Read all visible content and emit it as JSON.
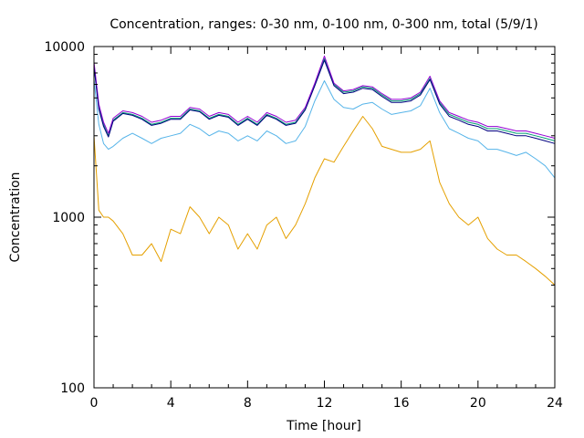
{
  "chart_data": {
    "type": "line",
    "title": "Concentration, ranges: 0-30 nm, 0-100 nm, 0-300 nm, total (5/9/1)",
    "xlabel": "Time [hour]",
    "ylabel": "Concentration",
    "xlim": [
      0,
      24
    ],
    "ylim": [
      100,
      10000
    ],
    "yscale": "log",
    "grid": false,
    "legend": "none",
    "x_ticks": [
      "0",
      "4",
      "8",
      "12",
      "16",
      "20",
      "24"
    ],
    "y_ticks": [
      "100",
      "1000",
      "10000"
    ],
    "x_tick_values": [
      0,
      4,
      8,
      12,
      16,
      20,
      24
    ],
    "y_tick_values": [
      100,
      1000,
      10000
    ],
    "x": [
      0,
      0.25,
      0.5,
      0.75,
      1,
      1.5,
      2,
      2.5,
      3,
      3.5,
      4,
      4.5,
      5,
      5.5,
      6,
      6.5,
      7,
      7.5,
      8,
      8.5,
      9,
      9.5,
      10,
      10.5,
      11,
      11.5,
      12,
      12.5,
      13,
      13.5,
      14,
      14.5,
      15,
      15.5,
      16,
      16.5,
      17,
      17.5,
      18,
      18.5,
      19,
      19.5,
      20,
      20.5,
      21,
      21.5,
      22,
      22.5,
      23,
      23.5,
      24
    ],
    "series": [
      {
        "color": "#e5a000",
        "values": [
          3000,
          1100,
          1000,
          1000,
          950,
          800,
          600,
          600,
          700,
          550,
          850,
          800,
          1150,
          1000,
          800,
          1000,
          900,
          650,
          800,
          650,
          900,
          1000,
          750,
          900,
          1200,
          1700,
          2200,
          2100,
          2600,
          3200,
          3900,
          3300,
          2600,
          2500,
          2400,
          2400,
          2500,
          2800,
          1600,
          1200,
          1000,
          900,
          1000,
          750,
          650,
          600,
          600,
          550,
          500,
          450,
          400
        ]
      },
      {
        "color": "#56b4e9",
        "values": [
          6400,
          3500,
          2700,
          2500,
          2600,
          2900,
          3100,
          2900,
          2700,
          2900,
          3000,
          3100,
          3500,
          3300,
          3000,
          3200,
          3100,
          2800,
          3000,
          2800,
          3200,
          3000,
          2700,
          2800,
          3400,
          4800,
          6300,
          4900,
          4400,
          4300,
          4600,
          4700,
          4300,
          4000,
          4100,
          4200,
          4500,
          5700,
          4100,
          3300,
          3100,
          2900,
          2800,
          2500,
          2500,
          2400,
          2300,
          2400,
          2200,
          2000,
          1700
        ]
      },
      {
        "color": "#009e73",
        "values": [
          7800,
          4400,
          3500,
          3000,
          3700,
          4100,
          4000,
          3800,
          3500,
          3600,
          3800,
          3800,
          4300,
          4200,
          3800,
          4000,
          3900,
          3500,
          3800,
          3500,
          4000,
          3800,
          3500,
          3600,
          4300,
          6000,
          8500,
          6000,
          5400,
          5500,
          5800,
          5700,
          5200,
          4800,
          4800,
          4900,
          5300,
          6500,
          4700,
          4000,
          3800,
          3600,
          3500,
          3300,
          3300,
          3200,
          3100,
          3100,
          3000,
          2900,
          2800
        ]
      },
      {
        "color": "#9400d3",
        "values": [
          8100,
          4600,
          3600,
          3100,
          3800,
          4200,
          4100,
          3900,
          3600,
          3700,
          3900,
          3900,
          4400,
          4300,
          3900,
          4100,
          4000,
          3600,
          3900,
          3600,
          4100,
          3900,
          3600,
          3700,
          4400,
          6100,
          8800,
          6100,
          5500,
          5600,
          5900,
          5800,
          5300,
          4900,
          4900,
          5000,
          5400,
          6700,
          4800,
          4100,
          3900,
          3700,
          3600,
          3400,
          3400,
          3300,
          3200,
          3200,
          3100,
          3000,
          2900
        ]
      },
      {
        "color": "#000080",
        "values": [
          7600,
          4300,
          3400,
          2950,
          3650,
          4050,
          3950,
          3750,
          3450,
          3550,
          3750,
          3750,
          4250,
          4150,
          3750,
          3950,
          3850,
          3450,
          3750,
          3450,
          3950,
          3750,
          3450,
          3550,
          4250,
          5900,
          8300,
          5900,
          5300,
          5400,
          5700,
          5600,
          5100,
          4700,
          4700,
          4800,
          5200,
          6400,
          4600,
          3900,
          3700,
          3500,
          3400,
          3200,
          3200,
          3100,
          3000,
          3000,
          2900,
          2800,
          2700
        ]
      }
    ]
  }
}
